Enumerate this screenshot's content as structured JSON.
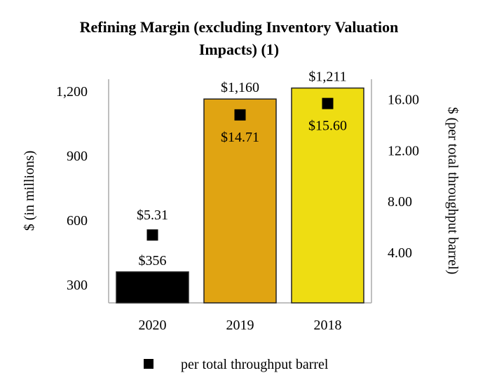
{
  "chart_data": {
    "type": "bar",
    "title": "Refining Margin (excluding Inventory Valuation Impacts) (1)",
    "title_lines": [
      "Refining Margin (excluding Inventory Valuation",
      "Impacts) (1)"
    ],
    "categories": [
      "2020",
      "2019",
      "2018"
    ],
    "series": [
      {
        "axis": "left",
        "type": "bar",
        "values": [
          356,
          1160,
          1211
        ],
        "labels": [
          "$356",
          "$1,160",
          "$1,211"
        ],
        "colors": [
          "#000000",
          "#E0A412",
          "#EEDD12"
        ]
      },
      {
        "name": "per total throughput barrel",
        "axis": "right",
        "type": "scatter",
        "marker": "square",
        "values": [
          5.31,
          14.71,
          15.6
        ],
        "labels": [
          "$5.31",
          "$14.71",
          "$15.60"
        ],
        "color": "#000000"
      }
    ],
    "ylabel": "$ (in millions)",
    "y2label": "$ (per total throughput barrel)",
    "yticks": [
      "300",
      "600",
      "900",
      "1,200"
    ],
    "ytick_values": [
      300,
      600,
      900,
      1200
    ],
    "y2ticks": [
      "4.00",
      "8.00",
      "12.00",
      "16.00"
    ],
    "y2tick_values": [
      4,
      8,
      12,
      16
    ],
    "ylim": [
      212,
      1252
    ],
    "y2lim": [
      0,
      17.5
    ],
    "grid": false,
    "legend": {
      "position": "bottom",
      "entries": [
        "per total throughput barrel"
      ]
    }
  }
}
